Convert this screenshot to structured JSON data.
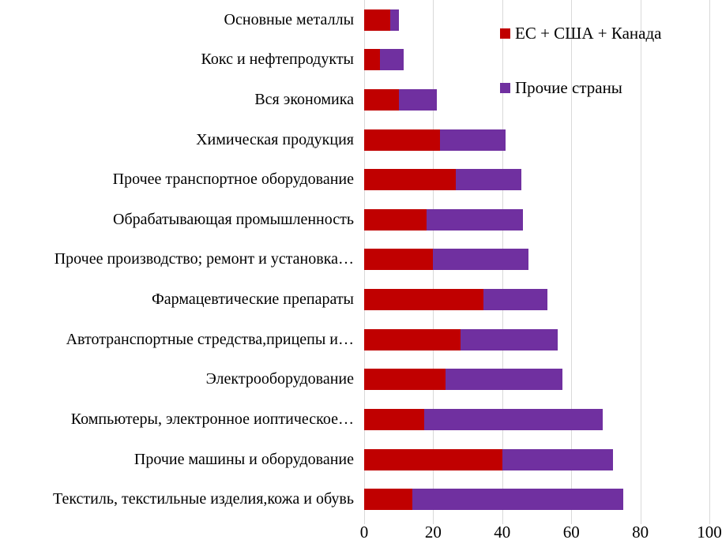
{
  "chart_data": {
    "type": "bar",
    "orientation": "horizontal",
    "stacked": true,
    "title": "",
    "xlabel": "",
    "ylabel": "",
    "xlim": [
      0,
      100
    ],
    "x_ticks": [
      0,
      20,
      40,
      60,
      80,
      100
    ],
    "grid": "vertical-light-gray",
    "legend_position": "inside-top-right",
    "categories": [
      "Основные металлы",
      "Кокс и нефтепродукты",
      "Вся экономика",
      "Химическая продукция",
      "Прочее транспортное оборудование",
      "Обрабатывающая промышленность",
      "Прочее производство; ремонт и установка…",
      "Фармацевтические препараты",
      "Автотранспортные стредства,прицепы и…",
      "Электрооборудование",
      "Компьютеры, электронное иоптическое…",
      "Прочие машины и оборудование",
      "Текстиль, текстильные изделия,кожа и обувь"
    ],
    "series": [
      {
        "name": "ЕС + США + Канада",
        "color": "#c00000",
        "values": [
          7.5,
          4.5,
          10,
          22,
          26.5,
          18,
          20,
          34.5,
          28,
          23.5,
          17.5,
          40,
          14
        ]
      },
      {
        "name": "Прочие страны",
        "color": "#7030a0",
        "values": [
          2.5,
          7,
          11,
          19,
          19,
          28,
          27.5,
          18.5,
          28,
          34,
          51.5,
          32,
          61
        ]
      }
    ]
  },
  "colors": {
    "gridline": "#d9d9d9",
    "text": "#000000",
    "background": "#ffffff"
  }
}
